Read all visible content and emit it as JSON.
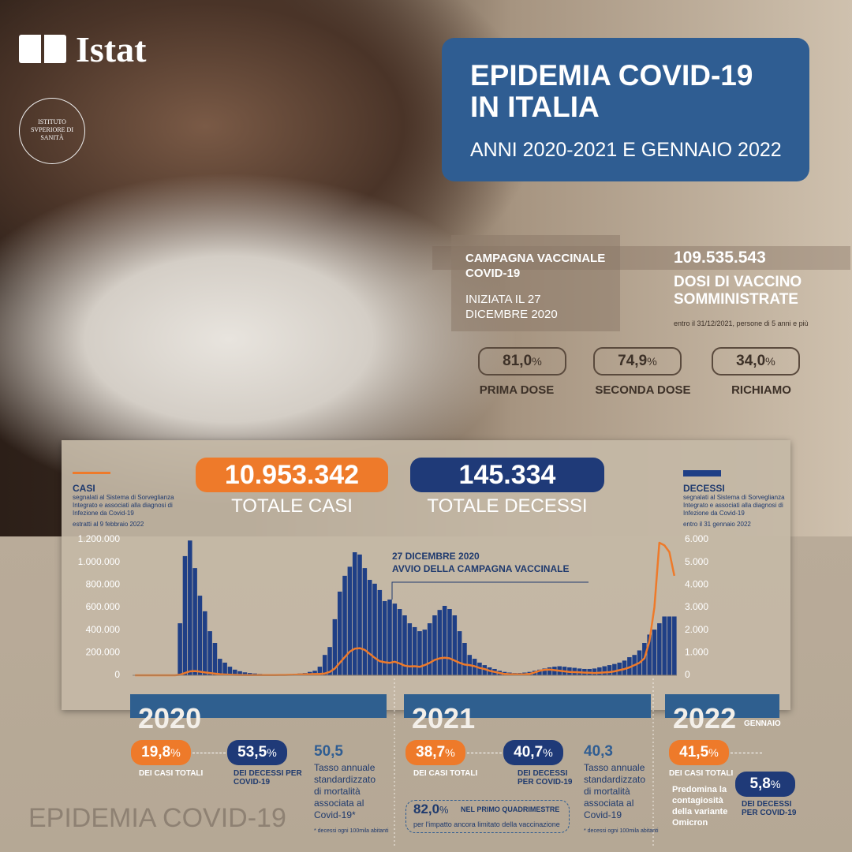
{
  "logo": "Istat",
  "iss_seal": "ISTITUTO SVPERIORE DI SANITÀ",
  "title": "EPIDEMIA COVID-19 IN ITALIA",
  "subtitle": "ANNI 2020-2021 E GENNAIO 2022",
  "vaccination": {
    "campaign": "CAMPAGNA VACCINALE COVID-19",
    "started": "INIZIATA IL 27 DICEMBRE 2020",
    "doses": "109.535.543",
    "doses_label": "DOSI DI VACCINO SOMMINISTRATE",
    "doses_note": "entro il 31/12/2021, persone di 5 anni e più",
    "coverage": [
      {
        "value": "81,0",
        "unit": "%",
        "label": "PRIMA DOSE"
      },
      {
        "value": "74,9",
        "unit": "%",
        "label": "SECONDA DOSE"
      },
      {
        "value": "34,0",
        "unit": "%",
        "label": "RICHIAMO"
      }
    ]
  },
  "totals": {
    "cases": "10.953.342",
    "cases_label": "TOTALE CASI",
    "deaths": "145.334",
    "deaths_label": "TOTALE DECESSI"
  },
  "chart_data": {
    "type": "bar-line",
    "annotation": [
      "27 DICEMBRE 2020",
      "AVVIO DELLA CAMPAGNA VACCINALE"
    ],
    "categories": [
      null,
      null,
      null,
      null,
      null,
      null,
      null,
      null,
      null,
      null,
      null,
      null,
      null,
      null,
      null,
      null,
      null,
      null,
      null,
      null,
      null,
      null,
      null,
      null,
      null,
      null,
      null,
      null,
      null,
      null,
      null,
      null,
      null,
      null,
      null,
      null,
      null,
      null,
      null,
      null,
      null,
      null,
      null,
      null,
      null,
      null,
      null,
      null,
      null,
      null,
      null,
      null,
      null,
      null,
      null,
      null,
      null,
      null,
      null,
      null,
      null,
      null,
      null,
      null,
      null,
      null,
      null,
      null,
      null,
      null,
      null,
      null,
      null,
      null,
      null,
      null,
      null,
      null,
      null,
      null,
      null,
      null,
      null,
      null,
      null,
      null,
      null,
      null,
      null,
      null,
      null,
      null,
      null,
      null,
      null,
      null,
      null,
      null,
      null,
      null,
      null,
      null,
      null,
      null,
      null,
      null,
      null,
      null,
      null
    ],
    "series": [
      {
        "name": "CASI",
        "chart": "line",
        "color": "#ee7a2a",
        "note": "segnalati al Sistema di Sorveglianza Integrato e associati alla diagnosi di Infezione da Covid-19",
        "date_note": "estratti al 9 febbraio 2022",
        "values": [
          0,
          0,
          0,
          0,
          0,
          0,
          0,
          0,
          100,
          5000,
          20000,
          35000,
          38000,
          32000,
          25000,
          20000,
          15000,
          10000,
          7000,
          5000,
          3500,
          2500,
          2000,
          1500,
          1500,
          1500,
          1500,
          1500,
          2000,
          2500,
          3000,
          4000,
          5000,
          7000,
          9000,
          10000,
          11000,
          12000,
          16000,
          30000,
          60000,
          110000,
          160000,
          210000,
          235000,
          240000,
          225000,
          190000,
          155000,
          125000,
          115000,
          110000,
          120000,
          105000,
          85000,
          78000,
          80000,
          75000,
          90000,
          110000,
          135000,
          150000,
          155000,
          150000,
          130000,
          110000,
          95000,
          90000,
          80000,
          65000,
          55000,
          40000,
          30000,
          20000,
          12000,
          10000,
          9000,
          8000,
          9000,
          12000,
          25000,
          40000,
          48000,
          50000,
          45000,
          40000,
          35000,
          30000,
          28000,
          26000,
          24000,
          22000,
          20000,
          22000,
          25000,
          28000,
          35000,
          45000,
          55000,
          70000,
          90000,
          110000,
          150000,
          300000,
          600000,
          1172000,
          1150000,
          1090000,
          880000
        ]
      },
      {
        "name": "DECESSI",
        "chart": "bar",
        "axis": "y2",
        "color": "#1f3f86",
        "note": "segnalati al Sistema di Sorveglianza Integrato e associati alla diagnosi di Infezione da Covid-19",
        "date_note": "entro il 31 gennaio 2022",
        "values": [
          0,
          0,
          0,
          0,
          0,
          0,
          0,
          0,
          0,
          2300,
          5270,
          5960,
          4740,
          3520,
          2830,
          1950,
          1430,
          730,
          560,
          380,
          250,
          180,
          130,
          100,
          80,
          60,
          50,
          50,
          40,
          40,
          40,
          50,
          60,
          80,
          100,
          150,
          200,
          380,
          900,
          1250,
          2480,
          3700,
          4400,
          4800,
          5440,
          5340,
          4740,
          4220,
          4050,
          3770,
          3280,
          3350,
          3170,
          2930,
          2650,
          2300,
          2130,
          1950,
          2020,
          2300,
          2650,
          2890,
          3070,
          2930,
          2650,
          1950,
          1430,
          900,
          730,
          560,
          450,
          350,
          280,
          200,
          150,
          120,
          100,
          100,
          120,
          150,
          200,
          250,
          300,
          350,
          380,
          400,
          380,
          350,
          330,
          300,
          280,
          280,
          300,
          350,
          400,
          450,
          500,
          560,
          650,
          800,
          900,
          1100,
          1430,
          1800,
          2020,
          2300,
          2600,
          2600,
          2600
        ]
      }
    ],
    "ylim": [
      0,
      1200000
    ],
    "yticks": [
      0,
      {
        "value": 200000,
        "label": "200.000"
      },
      {
        "value": 400000,
        "label": "400.000"
      },
      {
        "value": 600000,
        "label": "600.000"
      },
      {
        "value": 800000,
        "label": "800.000"
      },
      {
        "value": 1000000,
        "label": "1.000.000"
      },
      {
        "value": 1200000,
        "label": "1.200.000"
      }
    ],
    "y2lim": [
      0,
      6000
    ],
    "y2ticks": [
      0,
      {
        "value": 1000,
        "label": "1.000"
      },
      {
        "value": 2000,
        "label": "2.000"
      },
      {
        "value": 3000,
        "label": "3.000"
      },
      {
        "value": 4000,
        "label": "4.000"
      },
      {
        "value": 5000,
        "label": "5.000"
      },
      {
        "value": 6000,
        "label": "6.000"
      }
    ],
    "grid": false
  },
  "years": [
    {
      "year": "2020",
      "cases_share": {
        "value": "19,8",
        "unit": "%",
        "label": "DEI CASI TOTALI"
      },
      "deaths_share": {
        "value": "53,5",
        "unit": "%",
        "label": "DEI DECESSI PER COVID-19"
      },
      "rate": "50,5",
      "rate_label": "Tasso annuale standardizzato di mortalità associata al Covid-19*",
      "rate_note": "* decessi ogni 100mila abitanti"
    },
    {
      "year": "2021",
      "cases_share": {
        "value": "38,7",
        "unit": "%",
        "label": "DEI CASI TOTALI"
      },
      "deaths_share": {
        "value": "40,7",
        "unit": "%",
        "label": "DEI DECESSI PER COVID-19"
      },
      "rate": "40,3",
      "rate_label": "Tasso annuale standardizzato di mortalità associata al Covid-19",
      "rate_note": "* decessi ogni 100mila abitanti",
      "box": {
        "value": "82,0",
        "unit": "%",
        "label": "NEL PRIMO QUADRIMESTRE",
        "note": "per l'impatto ancora limitato della vaccinazione"
      }
    },
    {
      "year": "2022",
      "period": "GENNAIO",
      "cases_share": {
        "value": "41,5",
        "unit": "%",
        "label": "DEI CASI TOTALI"
      },
      "note": "Predomina la contagiosità della variante Omicron",
      "deaths_share": {
        "value": "5,8",
        "unit": "%",
        "label": "DEI DECESSI PER COVID-19"
      }
    }
  ],
  "footer": "EPIDEMIA COVID-19"
}
